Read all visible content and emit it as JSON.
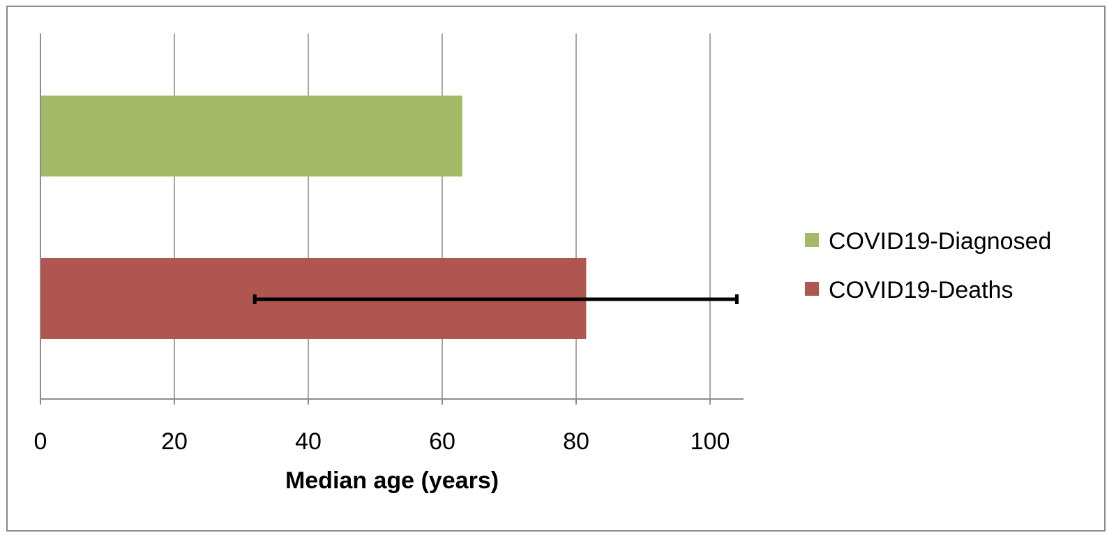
{
  "chart_data": {
    "type": "bar",
    "orientation": "horizontal",
    "title": "",
    "xlabel": "Median age (years)",
    "ylabel": "",
    "xlim": [
      0,
      105
    ],
    "xticks": [
      0,
      20,
      40,
      60,
      80,
      100
    ],
    "grid": true,
    "legend_position": "right",
    "series": [
      {
        "name": "COVID19-Diagnosed",
        "value": 63,
        "color": "#a3b968"
      },
      {
        "name": "COVID19-Deaths",
        "value": 81.5,
        "color": "#b05650",
        "error_range": [
          32,
          104
        ]
      }
    ]
  }
}
